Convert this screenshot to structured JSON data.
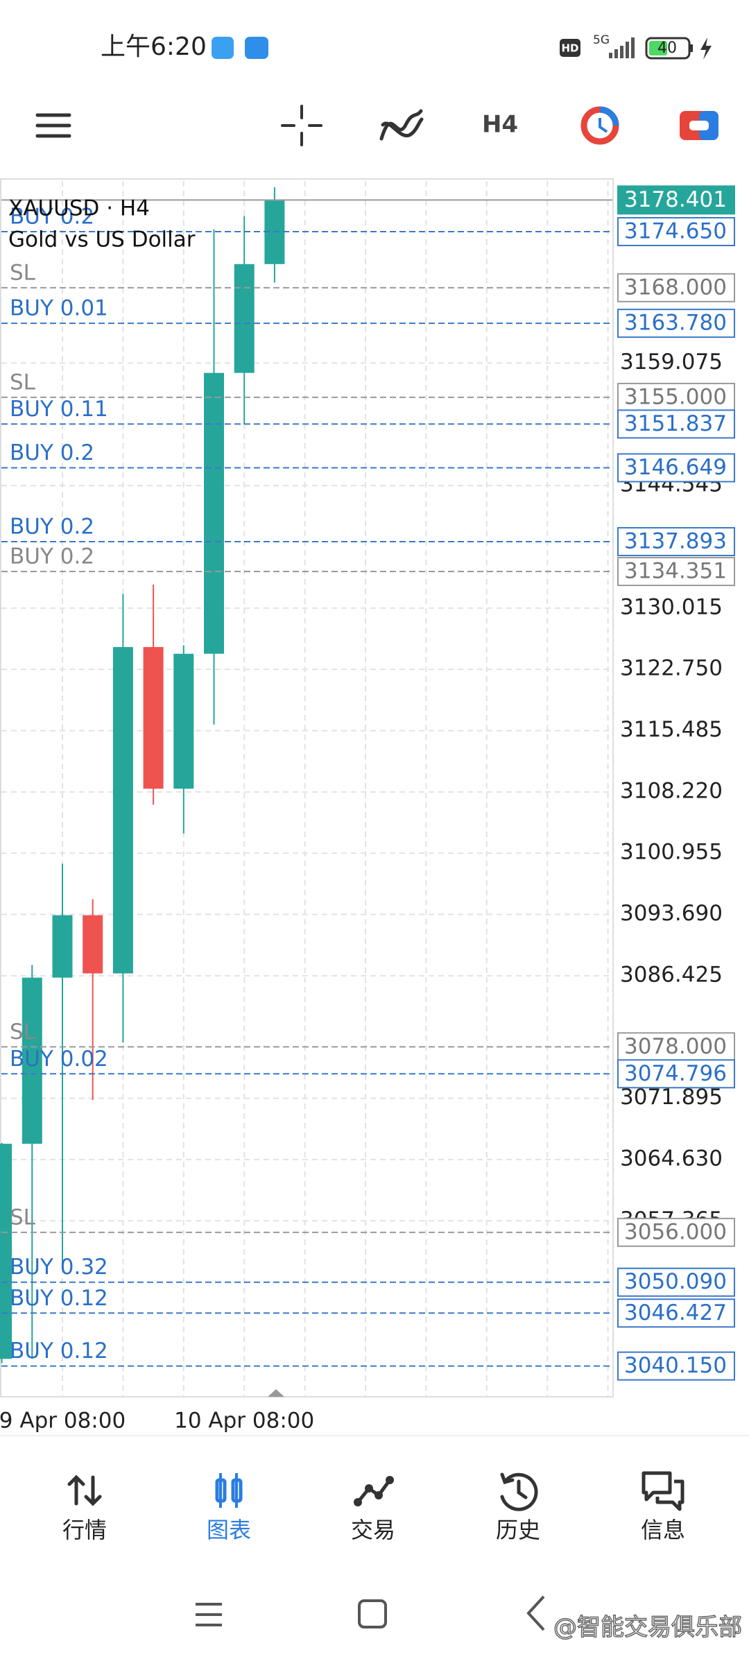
{
  "status_bar": {
    "time": "上午6:20",
    "network": "5G",
    "battery": "40"
  },
  "toolbar": {
    "timeframe": "H4"
  },
  "chart_data": {
    "type": "candlestick",
    "title": "XAUUSD · H4",
    "subtitle": "Gold vs US Dollar",
    "categories": [
      null,
      null,
      "9 Apr 08:00",
      null,
      null,
      null,
      null,
      null,
      "10 Apr 08:00",
      null
    ],
    "open": [
      3041.0,
      3066.5,
      3086.2,
      3093.6,
      3086.7,
      3125.4,
      3108.6,
      3124.6,
      3157.9,
      3170.8
    ],
    "high": [
      3066.6,
      3087.7,
      3099.7,
      3095.5,
      3131.7,
      3132.8,
      3125.6,
      3174.9,
      3176.5,
      3179.9
    ],
    "low": [
      3040.5,
      3041.0,
      3051.7,
      3071.7,
      3078.5,
      3106.7,
      3103.3,
      3116.2,
      3151.8,
      3168.6
    ],
    "close": [
      3066.5,
      3086.2,
      3093.6,
      3086.7,
      3125.4,
      3108.6,
      3124.6,
      3157.9,
      3170.8,
      3178.401
    ],
    "up_color": "#26a69a",
    "down_color": "#ef5350",
    "ylim": [
      3036.5,
      3180.65
    ],
    "yticks": [
      3159.075,
      3144.545,
      3130.015,
      {
        "value": 3122.75,
        "label": "3122.750"
      },
      3115.485,
      {
        "value": 3108.22,
        "label": "3108.220"
      },
      3100.955,
      {
        "value": 3093.69,
        "label": "3093.690"
      },
      3086.425,
      3071.895,
      {
        "value": 3064.63,
        "label": "3064.630"
      },
      3057.365
    ],
    "grid": true,
    "levels": [
      {
        "value": 3178.401,
        "kind": "current"
      },
      {
        "name": "BUY 0.2",
        "value": 3174.65,
        "value_label": "3174.650",
        "kind": "buy"
      },
      {
        "name": "SL",
        "value": 3168.0,
        "value_label": "3168.000",
        "kind": "sl"
      },
      {
        "name": "BUY 0.01",
        "value": 3163.78,
        "value_label": "3163.780",
        "kind": "buy"
      },
      {
        "name": "SL",
        "value": 3155.0,
        "value_label": "3155.000",
        "kind": "sl"
      },
      {
        "name": "BUY 0.11",
        "value": 3151.837,
        "kind": "buy"
      },
      {
        "name": "BUY 0.2",
        "value": 3146.649,
        "kind": "buy"
      },
      {
        "name": "BUY 0.2",
        "value": 3137.893,
        "kind": "buy"
      },
      {
        "name": "BUY 0.2",
        "value": 3134.351,
        "kind": "sl"
      },
      {
        "name": "SL",
        "value": 3078.0,
        "value_label": "3078.000",
        "kind": "sl"
      },
      {
        "name": "BUY 0.02",
        "value": 3074.796,
        "kind": "buy"
      },
      {
        "name": "SL",
        "value": 3056.0,
        "value_label": "3056.000",
        "kind": "sl"
      },
      {
        "name": "BUY 0.32",
        "value": 3050.09,
        "value_label": "3050.090",
        "kind": "buy"
      },
      {
        "name": "BUY 0.12",
        "value": 3046.427,
        "kind": "buy"
      },
      {
        "name": "BUY 0.12",
        "value": 3040.15,
        "value_label": "3040.150",
        "kind": "buy"
      }
    ]
  },
  "bottom_nav": {
    "items": [
      "行情",
      "图表",
      "交易",
      "历史",
      "信息"
    ],
    "active": 1
  },
  "watermark": "@智能交易俱乐部"
}
